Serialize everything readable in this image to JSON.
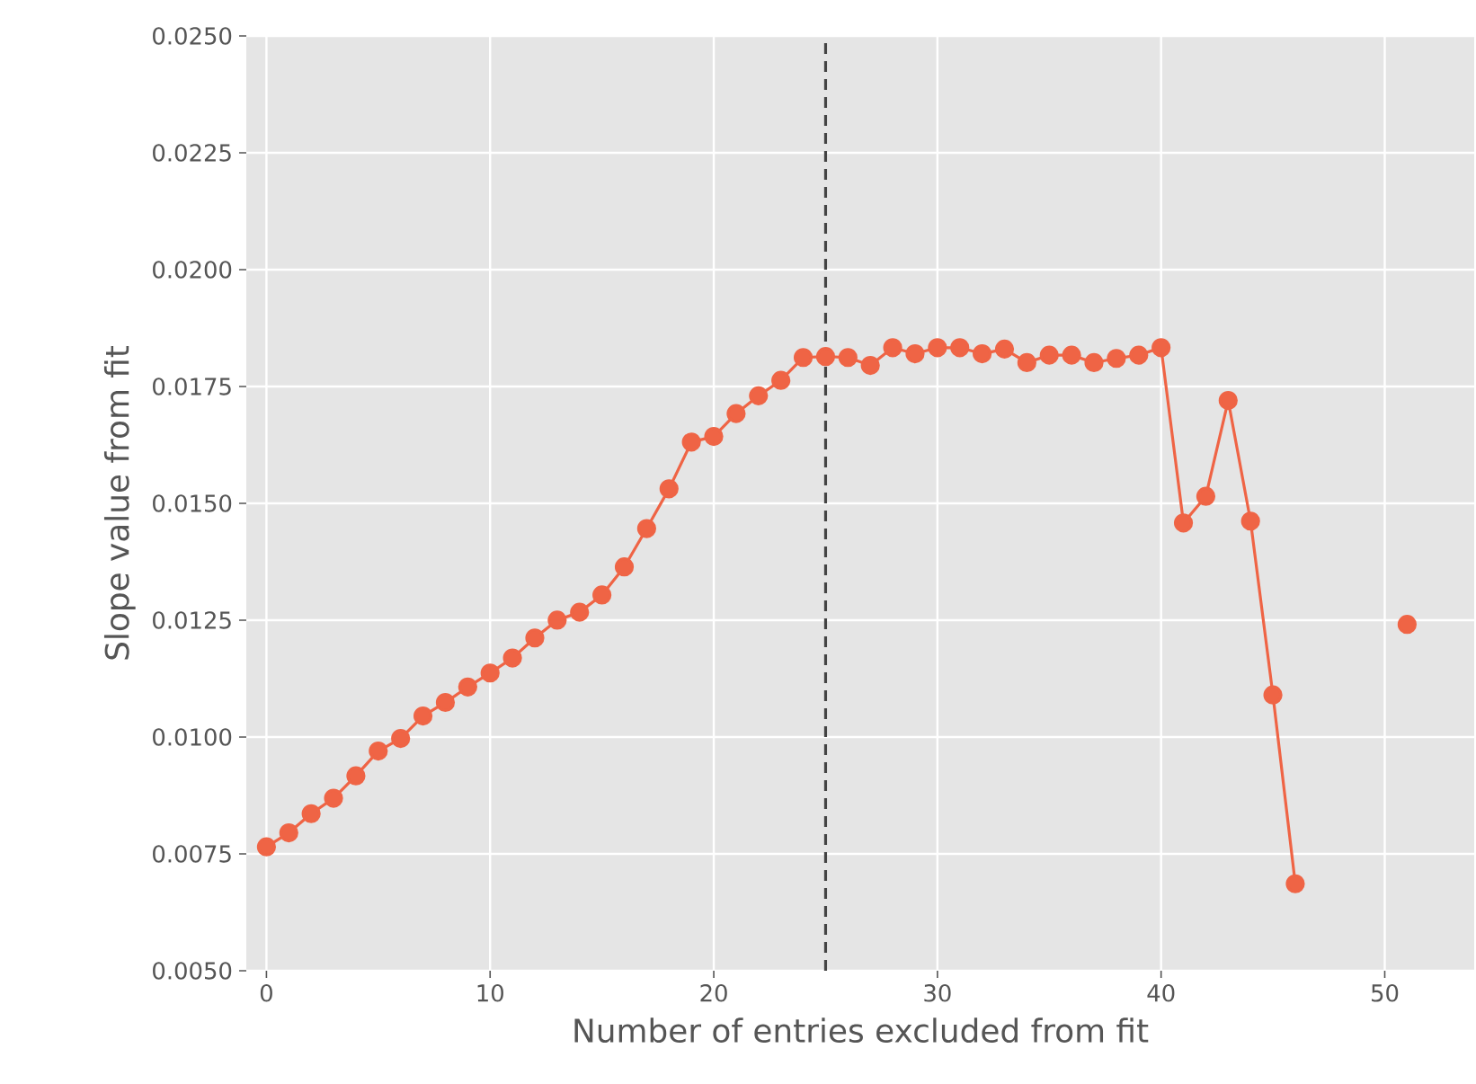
{
  "chart_data": {
    "type": "line",
    "xlabel": "Number of entries excluded from fit",
    "ylabel": "Slope value from fit",
    "x": [
      0,
      1,
      2,
      3,
      4,
      5,
      6,
      7,
      8,
      9,
      10,
      11,
      12,
      13,
      14,
      15,
      16,
      17,
      18,
      19,
      20,
      21,
      22,
      23,
      24,
      25,
      26,
      27,
      28,
      29,
      30,
      31,
      32,
      33,
      34,
      35,
      36,
      37,
      38,
      39,
      40,
      41,
      42,
      43,
      44,
      45,
      46,
      47,
      48,
      49,
      50,
      51
    ],
    "series": [
      {
        "color": "#ef6445",
        "values": [
          0.00765,
          0.00795,
          0.00836,
          0.00869,
          0.00917,
          0.0097,
          0.00997,
          0.01045,
          0.01074,
          0.01107,
          0.01137,
          0.01169,
          0.01212,
          0.0125,
          0.01267,
          0.01304,
          0.01364,
          0.01446,
          0.01531,
          0.01631,
          0.01643,
          0.01692,
          0.0173,
          0.01763,
          0.01812,
          0.01814,
          0.01812,
          0.01795,
          0.01833,
          0.0182,
          0.01833,
          0.01833,
          0.0182,
          0.0183,
          0.01801,
          0.01817,
          0.01817,
          0.01801,
          0.0181,
          0.01817,
          0.01833,
          0.01458,
          0.01515,
          0.0172,
          0.01462,
          0.0109,
          0.00686,
          null,
          null,
          null,
          null,
          0.01241
        ]
      }
    ],
    "xlim": [
      -0.9,
      54
    ],
    "ylim": [
      0.005,
      0.025
    ],
    "xticks": [
      0,
      10,
      20,
      30,
      40,
      50
    ],
    "yticks": [
      {
        "value": 0.005,
        "label": "0.0050"
      },
      {
        "value": 0.0075,
        "label": "0.0075"
      },
      {
        "value": 0.01,
        "label": "0.0100"
      },
      {
        "value": 0.0125,
        "label": "0.0125"
      },
      {
        "value": 0.015,
        "label": "0.0150"
      },
      {
        "value": 0.0175,
        "label": "0.0175"
      },
      {
        "value": 0.02,
        "label": "0.0200"
      },
      {
        "value": 0.0225,
        "label": "0.0225"
      },
      {
        "value": 0.025,
        "label": "0.0250"
      }
    ],
    "ref_lines": [
      {
        "axis": "x",
        "value": 25,
        "color": "#444444",
        "line_style": "dashed"
      }
    ],
    "grid": true,
    "marker": "circle",
    "line_style": "solid"
  }
}
